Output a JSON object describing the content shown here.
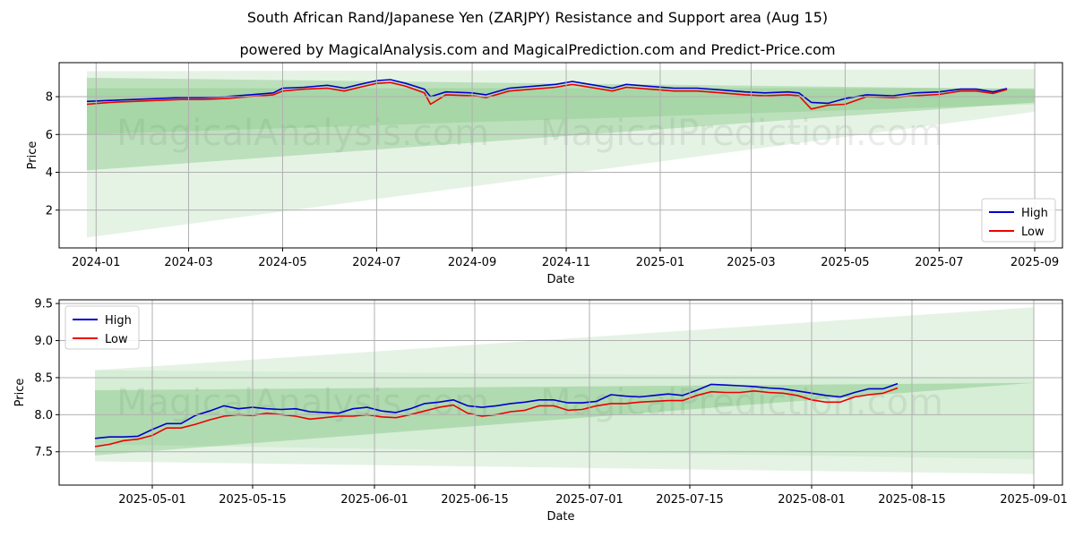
{
  "header": {
    "title": "South African Rand/Japanese Yen (ZARJPY) Resistance and Support area (Aug 15)",
    "subtitle": "powered by MagicalAnalysis.com and MagicalPrediction.com and Predict-Price.com"
  },
  "watermarks": [
    "MagicalAnalysis.com",
    "MagicalPrediction.com"
  ],
  "colors": {
    "high": "#0000cc",
    "low": "#ee0000",
    "band": "#2ca02c"
  },
  "chart_data": [
    {
      "type": "line",
      "xlabel": "Date",
      "ylabel": "Price",
      "legend": {
        "position": "lower-right",
        "entries": [
          "High",
          "Low"
        ]
      },
      "grid": true,
      "xlim": [
        "2023-12-08",
        "2025-09-19"
      ],
      "ylim": [
        0,
        9.8
      ],
      "x_ticks": [
        "2024-01-01",
        "2024-03-01",
        "2024-05-01",
        "2024-07-01",
        "2024-09-01",
        "2024-11-01",
        "2025-01-01",
        "2025-03-01",
        "2025-05-01",
        "2025-07-01",
        "2025-09-01"
      ],
      "x_tick_labels": [
        "2024-01",
        "2024-03",
        "2024-05",
        "2024-07",
        "2024-09",
        "2024-11",
        "2025-01",
        "2025-03",
        "2025-05",
        "2025-07",
        "2025-09"
      ],
      "y_ticks": [
        2,
        4,
        6,
        8
      ],
      "bands": [
        {
          "x": [
            "2023-12-26",
            "2025-09-01"
          ],
          "upper": [
            9.35,
            9.45
          ],
          "lower": [
            0.55,
            7.2
          ],
          "opacity": 0.12
        },
        {
          "x": [
            "2023-12-26",
            "2025-09-01"
          ],
          "upper": [
            9.0,
            8.4
          ],
          "lower": [
            4.1,
            7.7
          ],
          "opacity": 0.22
        },
        {
          "x": [
            "2023-12-26",
            "2025-09-01"
          ],
          "upper": [
            8.45,
            8.45
          ],
          "lower": [
            6.0,
            7.6
          ],
          "opacity": 0.15
        }
      ],
      "series": [
        {
          "name": "High",
          "x": [
            "2023-12-26",
            "2024-01-10",
            "2024-01-25",
            "2024-02-10",
            "2024-02-25",
            "2024-03-10",
            "2024-03-25",
            "2024-04-10",
            "2024-04-25",
            "2024-05-01",
            "2024-05-15",
            "2024-05-30",
            "2024-06-10",
            "2024-06-20",
            "2024-07-01",
            "2024-07-10",
            "2024-07-20",
            "2024-08-01",
            "2024-08-05",
            "2024-08-15",
            "2024-09-01",
            "2024-09-10",
            "2024-09-25",
            "2024-10-10",
            "2024-10-25",
            "2024-11-05",
            "2024-11-20",
            "2024-12-01",
            "2024-12-10",
            "2024-12-25",
            "2025-01-10",
            "2025-01-25",
            "2025-02-10",
            "2025-02-25",
            "2025-03-10",
            "2025-03-25",
            "2025-04-01",
            "2025-04-09",
            "2025-04-20",
            "2025-05-01",
            "2025-05-15",
            "2025-06-01",
            "2025-06-15",
            "2025-07-01",
            "2025-07-15",
            "2025-07-25",
            "2025-08-05",
            "2025-08-14"
          ],
          "values": [
            7.75,
            7.8,
            7.85,
            7.9,
            7.95,
            7.95,
            8.0,
            8.1,
            8.2,
            8.45,
            8.5,
            8.6,
            8.45,
            8.65,
            8.85,
            8.9,
            8.7,
            8.4,
            8.0,
            8.25,
            8.2,
            8.1,
            8.45,
            8.55,
            8.65,
            8.8,
            8.6,
            8.45,
            8.65,
            8.55,
            8.45,
            8.45,
            8.35,
            8.25,
            8.2,
            8.25,
            8.2,
            7.7,
            7.65,
            7.9,
            8.1,
            8.05,
            8.2,
            8.25,
            8.4,
            8.4,
            8.25,
            8.43
          ]
        },
        {
          "name": "Low",
          "x": [
            "2023-12-26",
            "2024-01-10",
            "2024-01-25",
            "2024-02-10",
            "2024-02-25",
            "2024-03-10",
            "2024-03-25",
            "2024-04-10",
            "2024-04-25",
            "2024-05-01",
            "2024-05-15",
            "2024-05-30",
            "2024-06-10",
            "2024-06-20",
            "2024-07-01",
            "2024-07-10",
            "2024-07-20",
            "2024-08-01",
            "2024-08-05",
            "2024-08-15",
            "2024-09-01",
            "2024-09-10",
            "2024-09-25",
            "2024-10-10",
            "2024-10-25",
            "2024-11-05",
            "2024-11-20",
            "2024-12-01",
            "2024-12-10",
            "2024-12-25",
            "2025-01-10",
            "2025-01-25",
            "2025-02-10",
            "2025-02-25",
            "2025-03-10",
            "2025-03-25",
            "2025-04-01",
            "2025-04-09",
            "2025-04-20",
            "2025-05-01",
            "2025-05-15",
            "2025-06-01",
            "2025-06-15",
            "2025-07-01",
            "2025-07-15",
            "2025-07-25",
            "2025-08-05",
            "2025-08-14"
          ],
          "values": [
            7.6,
            7.7,
            7.75,
            7.8,
            7.85,
            7.85,
            7.9,
            8.0,
            8.1,
            8.3,
            8.4,
            8.45,
            8.3,
            8.5,
            8.7,
            8.75,
            8.55,
            8.2,
            7.6,
            8.1,
            8.05,
            7.95,
            8.3,
            8.4,
            8.5,
            8.65,
            8.45,
            8.3,
            8.5,
            8.4,
            8.3,
            8.3,
            8.2,
            8.1,
            8.05,
            8.1,
            8.05,
            7.35,
            7.55,
            7.6,
            8.0,
            7.95,
            8.05,
            8.12,
            8.3,
            8.3,
            8.17,
            8.38
          ]
        }
      ]
    },
    {
      "type": "line",
      "xlabel": "Date",
      "ylabel": "Price",
      "legend": {
        "position": "upper-left",
        "entries": [
          "High",
          "Low"
        ]
      },
      "grid": true,
      "xlim": [
        "2025-04-18",
        "2025-09-05"
      ],
      "ylim": [
        7.05,
        9.55
      ],
      "x_ticks": [
        "2025-05-01",
        "2025-05-15",
        "2025-06-01",
        "2025-06-15",
        "2025-07-01",
        "2025-07-15",
        "2025-08-01",
        "2025-08-15",
        "2025-09-01"
      ],
      "x_tick_labels": [
        "2025-05-01",
        "2025-05-15",
        "2025-06-01",
        "2025-06-15",
        "2025-07-01",
        "2025-07-15",
        "2025-08-01",
        "2025-08-15",
        "2025-09-01"
      ],
      "y_ticks": [
        7.5,
        8.0,
        8.5,
        9.0,
        9.5
      ],
      "y_tick_labels": [
        "7.5",
        "8.0",
        "8.5",
        "9.0",
        "9.5"
      ],
      "bands": [
        {
          "x": [
            "2025-04-23",
            "2025-09-01"
          ],
          "upper": [
            8.6,
            9.45
          ],
          "lower": [
            7.37,
            7.2
          ],
          "opacity": 0.12
        },
        {
          "x": [
            "2025-04-23",
            "2025-09-01"
          ],
          "upper": [
            8.33,
            8.43
          ],
          "lower": [
            7.45,
            8.43
          ],
          "opacity": 0.22
        },
        {
          "x": [
            "2025-04-23",
            "2025-09-01"
          ],
          "upper": [
            8.6,
            8.5
          ],
          "lower": [
            7.6,
            7.4
          ],
          "opacity": 0.08
        }
      ],
      "series": [
        {
          "name": "High",
          "x": [
            "2025-04-23",
            "2025-04-25",
            "2025-04-27",
            "2025-04-29",
            "2025-05-01",
            "2025-05-03",
            "2025-05-05",
            "2025-05-07",
            "2025-05-09",
            "2025-05-11",
            "2025-05-13",
            "2025-05-15",
            "2025-05-17",
            "2025-05-19",
            "2025-05-21",
            "2025-05-23",
            "2025-05-25",
            "2025-05-27",
            "2025-05-29",
            "2025-05-31",
            "2025-06-02",
            "2025-06-04",
            "2025-06-06",
            "2025-06-08",
            "2025-06-10",
            "2025-06-12",
            "2025-06-14",
            "2025-06-16",
            "2025-06-18",
            "2025-06-20",
            "2025-06-22",
            "2025-06-24",
            "2025-06-26",
            "2025-06-28",
            "2025-06-30",
            "2025-07-02",
            "2025-07-04",
            "2025-07-06",
            "2025-07-08",
            "2025-07-10",
            "2025-07-12",
            "2025-07-14",
            "2025-07-16",
            "2025-07-18",
            "2025-07-20",
            "2025-07-22",
            "2025-07-24",
            "2025-07-26",
            "2025-07-28",
            "2025-07-30",
            "2025-08-01",
            "2025-08-03",
            "2025-08-05",
            "2025-08-07",
            "2025-08-09",
            "2025-08-11",
            "2025-08-13"
          ],
          "values": [
            7.68,
            7.7,
            7.7,
            7.71,
            7.8,
            7.88,
            7.88,
            7.99,
            8.05,
            8.12,
            8.08,
            8.1,
            8.08,
            8.07,
            8.08,
            8.04,
            8.03,
            8.02,
            8.08,
            8.1,
            8.05,
            8.03,
            8.08,
            8.15,
            8.17,
            8.2,
            8.12,
            8.1,
            8.12,
            8.15,
            8.17,
            8.2,
            8.2,
            8.16,
            8.16,
            8.18,
            8.27,
            8.25,
            8.24,
            8.26,
            8.28,
            8.26,
            8.33,
            8.41,
            8.4,
            8.39,
            8.38,
            8.36,
            8.35,
            8.32,
            8.29,
            8.26,
            8.24,
            8.3,
            8.35,
            8.35,
            8.42
          ]
        },
        {
          "name": "Low",
          "x": [
            "2025-04-23",
            "2025-04-25",
            "2025-04-27",
            "2025-04-29",
            "2025-05-01",
            "2025-05-03",
            "2025-05-05",
            "2025-05-07",
            "2025-05-09",
            "2025-05-11",
            "2025-05-13",
            "2025-05-15",
            "2025-05-17",
            "2025-05-19",
            "2025-05-21",
            "2025-05-23",
            "2025-05-25",
            "2025-05-27",
            "2025-05-29",
            "2025-05-31",
            "2025-06-02",
            "2025-06-04",
            "2025-06-06",
            "2025-06-08",
            "2025-06-10",
            "2025-06-12",
            "2025-06-14",
            "2025-06-16",
            "2025-06-18",
            "2025-06-20",
            "2025-06-22",
            "2025-06-24",
            "2025-06-26",
            "2025-06-28",
            "2025-06-30",
            "2025-07-02",
            "2025-07-04",
            "2025-07-06",
            "2025-07-08",
            "2025-07-10",
            "2025-07-12",
            "2025-07-14",
            "2025-07-16",
            "2025-07-18",
            "2025-07-20",
            "2025-07-22",
            "2025-07-24",
            "2025-07-26",
            "2025-07-28",
            "2025-07-30",
            "2025-08-01",
            "2025-08-03",
            "2025-08-05",
            "2025-08-07",
            "2025-08-09",
            "2025-08-11",
            "2025-08-13"
          ],
          "values": [
            7.57,
            7.6,
            7.65,
            7.67,
            7.72,
            7.82,
            7.82,
            7.87,
            7.93,
            7.98,
            8.0,
            7.99,
            8.02,
            8.0,
            7.98,
            7.94,
            7.96,
            7.98,
            7.98,
            8.0,
            7.97,
            7.96,
            8.0,
            8.05,
            8.1,
            8.13,
            8.02,
            7.98,
            8.0,
            8.04,
            8.06,
            8.12,
            8.12,
            8.06,
            8.07,
            8.12,
            8.15,
            8.15,
            8.17,
            8.18,
            8.19,
            8.19,
            8.26,
            8.31,
            8.3,
            8.3,
            8.32,
            8.3,
            8.29,
            8.26,
            8.2,
            8.17,
            8.17,
            8.24,
            8.27,
            8.29,
            8.36
          ]
        }
      ]
    }
  ]
}
